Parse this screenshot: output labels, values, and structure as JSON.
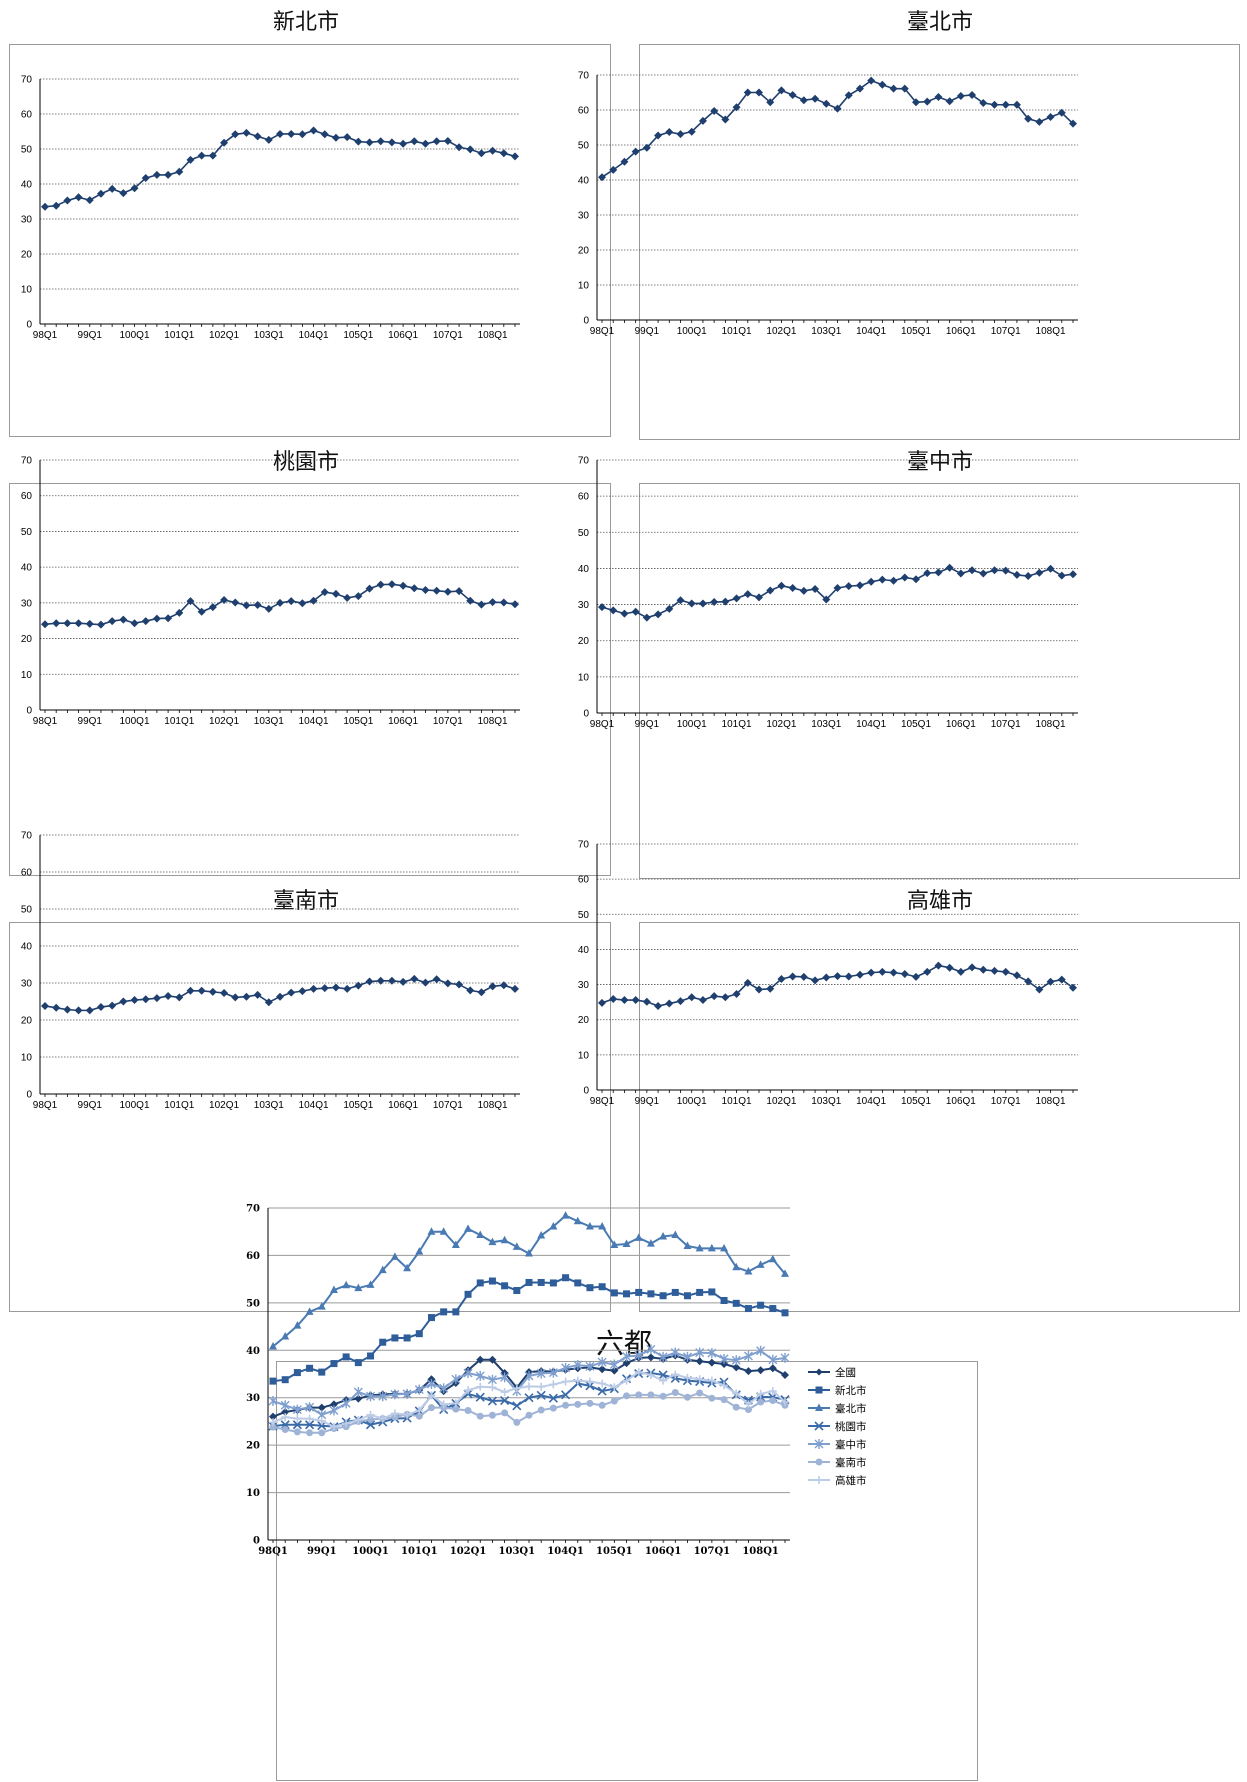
{
  "quarter_labels": [
    "98Q1",
    "99Q1",
    "100Q1",
    "101Q1",
    "102Q1",
    "103Q1",
    "104Q1",
    "105Q1",
    "106Q1",
    "107Q1",
    "108Q1"
  ],
  "chart_data": [
    {
      "id": "newtaipei",
      "type": "line",
      "title": "新北市",
      "ylim": [
        0,
        70
      ],
      "yticks": [
        0,
        10,
        20,
        30,
        40,
        50,
        60,
        70
      ],
      "x": [
        "98Q1",
        "98Q2",
        "98Q3",
        "98Q4",
        "99Q1",
        "99Q2",
        "99Q3",
        "99Q4",
        "100Q1",
        "100Q2",
        "100Q3",
        "100Q4",
        "101Q1",
        "101Q2",
        "101Q3",
        "101Q4",
        "102Q1",
        "102Q2",
        "102Q3",
        "102Q4",
        "103Q1",
        "103Q2",
        "103Q3",
        "103Q4",
        "104Q1",
        "104Q2",
        "104Q3",
        "104Q4",
        "105Q1",
        "105Q2",
        "105Q3",
        "105Q4",
        "106Q1",
        "106Q2",
        "106Q3",
        "106Q4",
        "107Q1",
        "107Q2",
        "107Q3",
        "107Q4",
        "108Q1",
        "108Q2",
        "108Q3"
      ],
      "series": [
        {
          "color": "#1f3f6e",
          "marker": "diamond",
          "values": [
            33.5,
            33.8,
            35.3,
            36.2,
            35.4,
            37.2,
            38.6,
            37.4,
            38.8,
            41.7,
            42.6,
            42.6,
            43.5,
            46.9,
            48.1,
            48.1,
            51.8,
            54.2,
            54.6,
            53.6,
            52.6,
            54.3,
            54.3,
            54.2,
            55.3,
            54.2,
            53.2,
            53.4,
            52.1,
            51.9,
            52.2,
            51.9,
            51.5,
            52.2,
            51.5,
            52.2,
            52.3,
            50.5,
            49.9,
            48.8,
            49.5,
            48.8,
            47.9
          ]
        }
      ]
    },
    {
      "id": "taipei",
      "type": "line",
      "title": "臺北市",
      "ylim": [
        0,
        70
      ],
      "yticks": [
        0,
        10,
        20,
        30,
        40,
        50,
        60,
        70
      ],
      "x": [
        "98Q1",
        "98Q2",
        "98Q3",
        "98Q4",
        "99Q1",
        "99Q2",
        "99Q3",
        "99Q4",
        "100Q1",
        "100Q2",
        "100Q3",
        "100Q4",
        "101Q1",
        "101Q2",
        "101Q3",
        "101Q4",
        "102Q1",
        "102Q2",
        "102Q3",
        "102Q4",
        "103Q1",
        "103Q2",
        "103Q3",
        "103Q4",
        "104Q1",
        "104Q2",
        "104Q3",
        "104Q4",
        "105Q1",
        "105Q2",
        "105Q3",
        "105Q4",
        "106Q1",
        "106Q2",
        "106Q3",
        "106Q4",
        "107Q1",
        "107Q2",
        "107Q3",
        "107Q4",
        "108Q1",
        "108Q2",
        "108Q3"
      ],
      "series": [
        {
          "color": "#1f3f6e",
          "marker": "diamond",
          "values": [
            40.8,
            42.9,
            45.2,
            48.1,
            49.2,
            52.7,
            53.7,
            53.1,
            53.8,
            56.9,
            59.7,
            57.3,
            60.8,
            65.0,
            65.0,
            62.2,
            65.6,
            64.3,
            62.8,
            63.2,
            61.8,
            60.4,
            64.2,
            66.1,
            68.4,
            67.2,
            66.1,
            66.1,
            62.2,
            62.4,
            63.7,
            62.5,
            64.0,
            64.3,
            62.0,
            61.5,
            61.5,
            61.5,
            57.5,
            56.6,
            58.0,
            59.2,
            56.1
          ]
        }
      ]
    },
    {
      "id": "taoyuan",
      "type": "line",
      "title": "桃園市",
      "ylim": [
        0,
        70
      ],
      "yticks": [
        0,
        10,
        20,
        30,
        40,
        50,
        60,
        70
      ],
      "x": [
        "98Q1",
        "98Q2",
        "98Q3",
        "98Q4",
        "99Q1",
        "99Q2",
        "99Q3",
        "99Q4",
        "100Q1",
        "100Q2",
        "100Q3",
        "100Q4",
        "101Q1",
        "101Q2",
        "101Q3",
        "101Q4",
        "102Q1",
        "102Q2",
        "102Q3",
        "102Q4",
        "103Q1",
        "103Q2",
        "103Q3",
        "103Q4",
        "104Q1",
        "104Q2",
        "104Q3",
        "104Q4",
        "105Q1",
        "105Q2",
        "105Q3",
        "105Q4",
        "106Q1",
        "106Q2",
        "106Q3",
        "106Q4",
        "107Q1",
        "107Q2",
        "107Q3",
        "107Q4",
        "108Q1",
        "108Q2",
        "108Q3"
      ],
      "series": [
        {
          "color": "#1f3f6e",
          "marker": "diamond",
          "values": [
            24.0,
            24.3,
            24.3,
            24.3,
            24.1,
            23.9,
            24.9,
            25.3,
            24.3,
            24.9,
            25.6,
            25.7,
            27.2,
            30.5,
            27.5,
            28.8,
            30.8,
            30.1,
            29.3,
            29.4,
            28.3,
            30.0,
            30.5,
            29.9,
            30.6,
            33.0,
            32.5,
            31.4,
            31.9,
            34.0,
            35.1,
            35.2,
            34.8,
            34.1,
            33.6,
            33.4,
            33.1,
            33.3,
            30.6,
            29.5,
            30.2,
            30.1,
            29.6
          ]
        }
      ]
    },
    {
      "id": "taichung",
      "type": "line",
      "title": "臺中市",
      "ylim": [
        0,
        70
      ],
      "yticks": [
        0,
        10,
        20,
        30,
        40,
        50,
        60,
        70
      ],
      "x": [
        "98Q1",
        "98Q2",
        "98Q3",
        "98Q4",
        "99Q1",
        "99Q2",
        "99Q3",
        "99Q4",
        "100Q1",
        "100Q2",
        "100Q3",
        "100Q4",
        "101Q1",
        "101Q2",
        "101Q3",
        "101Q4",
        "102Q1",
        "102Q2",
        "102Q3",
        "102Q4",
        "103Q1",
        "103Q2",
        "103Q3",
        "103Q4",
        "104Q1",
        "104Q2",
        "104Q3",
        "104Q4",
        "105Q1",
        "105Q2",
        "105Q3",
        "105Q4",
        "106Q1",
        "106Q2",
        "106Q3",
        "106Q4",
        "107Q1",
        "107Q2",
        "107Q3",
        "107Q4",
        "108Q1",
        "108Q2",
        "108Q3"
      ],
      "series": [
        {
          "color": "#1f3f6e",
          "marker": "diamond",
          "values": [
            29.3,
            28.4,
            27.5,
            28.0,
            26.4,
            27.3,
            28.8,
            31.2,
            30.3,
            30.3,
            30.7,
            30.8,
            31.7,
            32.9,
            32.0,
            33.9,
            35.2,
            34.6,
            33.8,
            34.3,
            31.4,
            34.6,
            35.1,
            35.3,
            36.3,
            36.9,
            36.6,
            37.5,
            37.0,
            38.7,
            38.9,
            40.2,
            38.6,
            39.5,
            38.6,
            39.5,
            39.4,
            38.2,
            37.9,
            38.8,
            39.9,
            38.0,
            38.4
          ]
        }
      ]
    },
    {
      "id": "tainan",
      "type": "line",
      "title": "臺南市",
      "ylim": [
        0,
        70
      ],
      "yticks": [
        0,
        10,
        20,
        30,
        40,
        50,
        60,
        70
      ],
      "x": [
        "98Q1",
        "98Q2",
        "98Q3",
        "98Q4",
        "99Q1",
        "99Q2",
        "99Q3",
        "99Q4",
        "100Q1",
        "100Q2",
        "100Q3",
        "100Q4",
        "101Q1",
        "101Q2",
        "101Q3",
        "101Q4",
        "102Q1",
        "102Q2",
        "102Q3",
        "102Q4",
        "103Q1",
        "103Q2",
        "103Q3",
        "103Q4",
        "104Q1",
        "104Q2",
        "104Q3",
        "104Q4",
        "105Q1",
        "105Q2",
        "105Q3",
        "105Q4",
        "106Q1",
        "106Q2",
        "106Q3",
        "106Q4",
        "107Q1",
        "107Q2",
        "107Q3",
        "107Q4",
        "108Q1",
        "108Q2",
        "108Q3"
      ],
      "series": [
        {
          "color": "#1f3f6e",
          "marker": "diamond",
          "values": [
            23.8,
            23.3,
            22.8,
            22.6,
            22.6,
            23.5,
            23.9,
            25.0,
            25.4,
            25.6,
            25.9,
            26.5,
            26.1,
            27.9,
            27.9,
            27.6,
            27.3,
            26.1,
            26.3,
            26.8,
            24.8,
            26.3,
            27.4,
            27.8,
            28.4,
            28.6,
            28.8,
            28.4,
            29.3,
            30.4,
            30.6,
            30.6,
            30.3,
            31.1,
            30.1,
            31.0,
            29.9,
            29.6,
            28.0,
            27.5,
            29.1,
            29.4,
            28.4
          ]
        }
      ]
    },
    {
      "id": "kaohsiung",
      "type": "line",
      "title": "高雄市",
      "ylim": [
        0,
        70
      ],
      "yticks": [
        0,
        10,
        20,
        30,
        40,
        50,
        60,
        70
      ],
      "x": [
        "98Q1",
        "98Q2",
        "98Q3",
        "98Q4",
        "99Q1",
        "99Q2",
        "99Q3",
        "99Q4",
        "100Q1",
        "100Q2",
        "100Q3",
        "100Q4",
        "101Q1",
        "101Q2",
        "101Q3",
        "101Q4",
        "102Q1",
        "102Q2",
        "102Q3",
        "102Q4",
        "103Q1",
        "103Q2",
        "103Q3",
        "103Q4",
        "104Q1",
        "104Q2",
        "104Q3",
        "104Q4",
        "105Q1",
        "105Q2",
        "105Q3",
        "105Q4",
        "106Q1",
        "106Q2",
        "106Q3",
        "106Q4",
        "107Q1",
        "107Q2",
        "107Q3",
        "107Q4",
        "108Q1",
        "108Q2",
        "108Q3"
      ],
      "series": [
        {
          "color": "#1f3f6e",
          "marker": "diamond",
          "values": [
            24.8,
            25.9,
            25.6,
            25.6,
            25.1,
            23.9,
            24.6,
            25.3,
            26.4,
            25.6,
            26.7,
            26.4,
            27.3,
            30.5,
            28.6,
            28.8,
            31.6,
            32.3,
            32.2,
            31.2,
            32.0,
            32.4,
            32.3,
            32.8,
            33.4,
            33.6,
            33.4,
            33.0,
            32.2,
            33.6,
            35.4,
            34.8,
            33.6,
            34.9,
            34.2,
            33.9,
            33.6,
            32.6,
            30.9,
            28.6,
            30.8,
            31.4,
            29.1
          ]
        }
      ]
    },
    {
      "id": "six",
      "type": "line",
      "title": "六都",
      "ylim": [
        0,
        70
      ],
      "yticks": [
        0,
        10,
        20,
        30,
        40,
        50,
        60,
        70
      ],
      "legend_position": "right",
      "x": [
        "98Q1",
        "98Q2",
        "98Q3",
        "98Q4",
        "99Q1",
        "99Q2",
        "99Q3",
        "99Q4",
        "100Q1",
        "100Q2",
        "100Q3",
        "100Q4",
        "101Q1",
        "101Q2",
        "101Q3",
        "101Q4",
        "102Q1",
        "102Q2",
        "102Q3",
        "102Q4",
        "103Q1",
        "103Q2",
        "103Q3",
        "103Q4",
        "104Q1",
        "104Q2",
        "104Q3",
        "104Q4",
        "105Q1",
        "105Q2",
        "105Q3",
        "105Q4",
        "106Q1",
        "106Q2",
        "106Q3",
        "106Q4",
        "107Q1",
        "107Q2",
        "107Q3",
        "107Q4",
        "108Q1",
        "108Q2",
        "108Q3"
      ],
      "series": [
        {
          "name": "全國",
          "color": "#1f3f6e",
          "marker": "diamond",
          "values": [
            26.0,
            27.0,
            27.4,
            27.9,
            27.9,
            28.6,
            29.5,
            29.8,
            30.5,
            30.7,
            30.8,
            30.8,
            31.6,
            33.9,
            31.4,
            33.1,
            35.8,
            38.0,
            38.0,
            35.2,
            32.1,
            35.4,
            35.6,
            35.5,
            35.9,
            36.2,
            36.4,
            36.0,
            35.7,
            37.3,
            38.4,
            38.5,
            38.2,
            38.9,
            38.0,
            37.7,
            37.4,
            37.1,
            36.4,
            35.6,
            35.8,
            36.2,
            34.8
          ]
        },
        {
          "name": "新北市",
          "color": "#2e5d99",
          "marker": "square",
          "values": [
            33.5,
            33.8,
            35.3,
            36.2,
            35.4,
            37.2,
            38.6,
            37.4,
            38.8,
            41.7,
            42.6,
            42.6,
            43.5,
            46.9,
            48.1,
            48.1,
            51.8,
            54.2,
            54.6,
            53.6,
            52.6,
            54.3,
            54.3,
            54.2,
            55.3,
            54.2,
            53.2,
            53.4,
            52.1,
            51.9,
            52.2,
            51.9,
            51.5,
            52.2,
            51.5,
            52.2,
            52.3,
            50.5,
            49.9,
            48.8,
            49.5,
            48.8,
            47.9
          ]
        },
        {
          "name": "臺北市",
          "color": "#4a7ab3",
          "marker": "triangle",
          "values": [
            40.8,
            42.9,
            45.2,
            48.1,
            49.2,
            52.7,
            53.7,
            53.1,
            53.8,
            56.9,
            59.7,
            57.3,
            60.8,
            65.0,
            65.0,
            62.2,
            65.6,
            64.3,
            62.8,
            63.2,
            61.8,
            60.4,
            64.2,
            66.1,
            68.4,
            67.2,
            66.1,
            66.1,
            62.2,
            62.4,
            63.7,
            62.5,
            64.0,
            64.3,
            62.0,
            61.5,
            61.5,
            61.5,
            57.5,
            56.6,
            58.0,
            59.2,
            56.1
          ]
        },
        {
          "name": "桃園市",
          "color": "#3a6aa8",
          "marker": "x",
          "values": [
            24.0,
            24.3,
            24.3,
            24.3,
            24.1,
            23.9,
            24.9,
            25.3,
            24.3,
            24.9,
            25.6,
            25.7,
            27.2,
            30.5,
            27.5,
            28.8,
            30.8,
            30.1,
            29.3,
            29.4,
            28.3,
            30.0,
            30.5,
            29.9,
            30.6,
            33.0,
            32.5,
            31.4,
            31.9,
            34.0,
            35.1,
            35.2,
            34.8,
            34.1,
            33.6,
            33.4,
            33.1,
            33.3,
            30.6,
            29.5,
            30.2,
            30.1,
            29.6
          ]
        },
        {
          "name": "臺中市",
          "color": "#7f9fcf",
          "marker": "star",
          "values": [
            29.3,
            28.4,
            27.5,
            28.0,
            26.4,
            27.3,
            28.8,
            31.2,
            30.3,
            30.3,
            30.7,
            30.8,
            31.7,
            32.9,
            32.0,
            33.9,
            35.2,
            34.6,
            33.8,
            34.3,
            31.4,
            34.6,
            35.1,
            35.3,
            36.3,
            36.9,
            36.6,
            37.5,
            37.0,
            38.7,
            38.9,
            40.2,
            38.6,
            39.5,
            38.6,
            39.5,
            39.4,
            38.2,
            37.9,
            38.8,
            39.9,
            38.0,
            38.4
          ]
        },
        {
          "name": "臺南市",
          "color": "#9fb3d6",
          "marker": "circle",
          "values": [
            23.8,
            23.3,
            22.8,
            22.6,
            22.6,
            23.5,
            23.9,
            25.0,
            25.4,
            25.6,
            25.9,
            26.5,
            26.1,
            27.9,
            27.9,
            27.6,
            27.3,
            26.1,
            26.3,
            26.8,
            24.8,
            26.3,
            27.4,
            27.8,
            28.4,
            28.6,
            28.8,
            28.4,
            29.3,
            30.4,
            30.6,
            30.6,
            30.3,
            31.1,
            30.1,
            31.0,
            29.9,
            29.6,
            28.0,
            27.5,
            29.1,
            29.4,
            28.4
          ]
        },
        {
          "name": "高雄市",
          "color": "#bccbe6",
          "marker": "plus",
          "values": [
            24.8,
            25.9,
            25.6,
            25.6,
            25.1,
            23.9,
            24.6,
            25.3,
            26.4,
            25.6,
            26.7,
            26.4,
            27.3,
            30.5,
            28.6,
            28.8,
            31.6,
            32.3,
            32.2,
            31.2,
            32.0,
            32.4,
            32.3,
            32.8,
            33.4,
            33.6,
            33.4,
            33.0,
            32.2,
            33.6,
            35.4,
            34.8,
            33.6,
            34.9,
            34.2,
            33.9,
            33.6,
            32.6,
            30.9,
            28.6,
            30.8,
            31.4,
            29.1
          ]
        }
      ]
    }
  ]
}
